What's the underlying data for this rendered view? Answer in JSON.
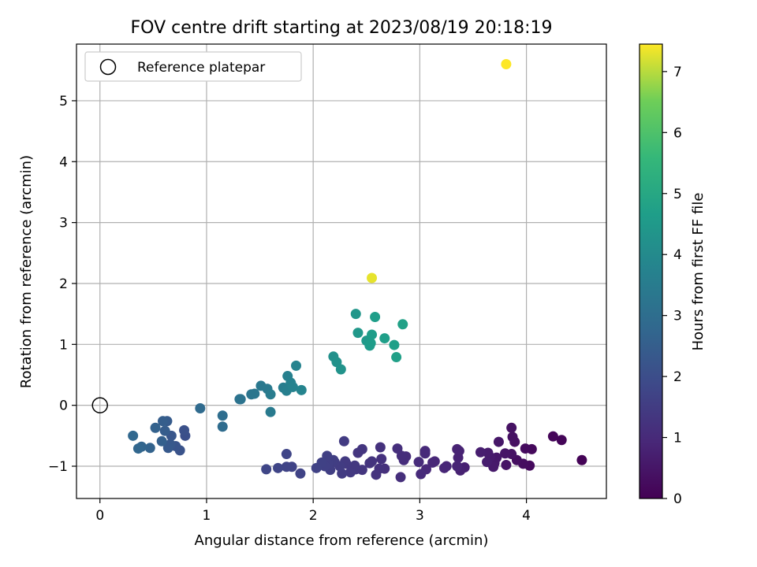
{
  "chart_data": {
    "type": "scatter",
    "title": "FOV centre drift starting at 2023/08/19 20:18:19",
    "xlabel": "Angular distance from reference (arcmin)",
    "ylabel": "Rotation from reference (arcmin)",
    "xlim": [
      -0.22,
      4.75
    ],
    "ylim": [
      -1.53,
      5.93
    ],
    "xticks": [
      0,
      1,
      2,
      3,
      4
    ],
    "yticks": [
      -1,
      0,
      1,
      2,
      3,
      4,
      5
    ],
    "grid": true,
    "legend": {
      "position": "upper-left",
      "entries": [
        {
          "label": "Reference platepar",
          "marker": "open-circle"
        }
      ]
    },
    "reference_point": {
      "x": 0,
      "y": 0
    },
    "colorbar": {
      "label": "Hours from first FF file",
      "range": [
        0,
        7.45
      ],
      "ticks": [
        0,
        1,
        2,
        3,
        4,
        5,
        6,
        7
      ],
      "colormap": "viridis"
    },
    "points": [
      {
        "x": 4.52,
        "y": -0.9,
        "c": 0.05
      },
      {
        "x": 4.33,
        "y": -0.57,
        "c": 0.1
      },
      {
        "x": 4.25,
        "y": -0.51,
        "c": 0.12
      },
      {
        "x": 4.05,
        "y": -0.72,
        "c": 0.18
      },
      {
        "x": 4.03,
        "y": -0.99,
        "c": 0.22
      },
      {
        "x": 3.99,
        "y": -0.71,
        "c": 0.25
      },
      {
        "x": 3.97,
        "y": -0.96,
        "c": 0.28
      },
      {
        "x": 3.91,
        "y": -0.9,
        "c": 0.32
      },
      {
        "x": 3.89,
        "y": -0.6,
        "c": 0.35
      },
      {
        "x": 3.87,
        "y": -0.52,
        "c": 0.38
      },
      {
        "x": 3.86,
        "y": -0.37,
        "c": 0.4
      },
      {
        "x": 3.86,
        "y": -0.8,
        "c": 0.42
      },
      {
        "x": 3.81,
        "y": -0.98,
        "c": 0.45
      },
      {
        "x": 3.8,
        "y": -0.79,
        "c": 0.48
      },
      {
        "x": 3.74,
        "y": -0.6,
        "c": 0.52
      },
      {
        "x": 3.72,
        "y": -0.86,
        "c": 0.55
      },
      {
        "x": 3.7,
        "y": -0.95,
        "c": 0.58
      },
      {
        "x": 3.69,
        "y": -1.01,
        "c": 0.6
      },
      {
        "x": 3.66,
        "y": -0.85,
        "c": 0.62
      },
      {
        "x": 3.64,
        "y": -0.78,
        "c": 0.65
      },
      {
        "x": 3.63,
        "y": -0.93,
        "c": 0.68
      },
      {
        "x": 3.57,
        "y": -0.77,
        "c": 0.7
      },
      {
        "x": 3.42,
        "y": -1.02,
        "c": 0.75
      },
      {
        "x": 3.38,
        "y": -1.07,
        "c": 0.78
      },
      {
        "x": 3.37,
        "y": -0.75,
        "c": 0.8
      },
      {
        "x": 3.36,
        "y": -0.86,
        "c": 0.82
      },
      {
        "x": 3.35,
        "y": -0.72,
        "c": 0.84
      },
      {
        "x": 3.35,
        "y": -1.0,
        "c": 0.86
      },
      {
        "x": 3.25,
        "y": -1.0,
        "c": 0.88
      },
      {
        "x": 3.23,
        "y": -1.03,
        "c": 0.9
      },
      {
        "x": 3.14,
        "y": -0.92,
        "c": 0.92
      },
      {
        "x": 3.12,
        "y": -0.94,
        "c": 0.94
      },
      {
        "x": 3.06,
        "y": -1.05,
        "c": 0.96
      },
      {
        "x": 3.05,
        "y": -0.75,
        "c": 0.98
      },
      {
        "x": 3.05,
        "y": -0.79,
        "c": 1.0
      },
      {
        "x": 3.01,
        "y": -1.13,
        "c": 1.02
      },
      {
        "x": 2.99,
        "y": -0.93,
        "c": 1.04
      },
      {
        "x": 2.87,
        "y": -0.84,
        "c": 1.06
      },
      {
        "x": 2.85,
        "y": -0.9,
        "c": 1.08
      },
      {
        "x": 2.83,
        "y": -0.83,
        "c": 1.1
      },
      {
        "x": 2.82,
        "y": -1.18,
        "c": 1.12
      },
      {
        "x": 2.79,
        "y": -0.71,
        "c": 1.14
      },
      {
        "x": 2.67,
        "y": -1.04,
        "c": 1.16
      },
      {
        "x": 2.64,
        "y": -0.88,
        "c": 1.18
      },
      {
        "x": 2.63,
        "y": -0.69,
        "c": 1.2
      },
      {
        "x": 2.62,
        "y": -1.04,
        "c": 1.22
      },
      {
        "x": 2.59,
        "y": -1.14,
        "c": 1.24
      },
      {
        "x": 2.55,
        "y": -0.92,
        "c": 1.26
      },
      {
        "x": 2.53,
        "y": -0.95,
        "c": 1.28
      },
      {
        "x": 2.46,
        "y": -0.72,
        "c": 1.3
      },
      {
        "x": 2.46,
        "y": -1.06,
        "c": 1.32
      },
      {
        "x": 2.42,
        "y": -0.78,
        "c": 1.34
      },
      {
        "x": 2.4,
        "y": -1.05,
        "c": 1.36
      },
      {
        "x": 2.39,
        "y": -0.99,
        "c": 1.38
      },
      {
        "x": 2.35,
        "y": -1.1,
        "c": 1.4
      },
      {
        "x": 2.31,
        "y": -0.96,
        "c": 1.42
      },
      {
        "x": 2.3,
        "y": -0.92,
        "c": 1.44
      },
      {
        "x": 2.29,
        "y": -0.59,
        "c": 1.46
      },
      {
        "x": 2.27,
        "y": -1.12,
        "c": 1.48
      },
      {
        "x": 2.25,
        "y": -1.0,
        "c": 1.5
      },
      {
        "x": 2.2,
        "y": -0.93,
        "c": 1.52
      },
      {
        "x": 2.19,
        "y": -0.9,
        "c": 1.54
      },
      {
        "x": 2.16,
        "y": -1.06,
        "c": 1.56
      },
      {
        "x": 2.14,
        "y": -0.96,
        "c": 1.58
      },
      {
        "x": 2.13,
        "y": -0.83,
        "c": 1.6
      },
      {
        "x": 2.11,
        "y": -1.0,
        "c": 1.62
      },
      {
        "x": 2.08,
        "y": -0.94,
        "c": 1.64
      },
      {
        "x": 2.03,
        "y": -1.03,
        "c": 1.66
      },
      {
        "x": 1.88,
        "y": -1.12,
        "c": 1.68
      },
      {
        "x": 1.8,
        "y": -1.01,
        "c": 1.7
      },
      {
        "x": 1.75,
        "y": -1.01,
        "c": 1.72
      },
      {
        "x": 1.75,
        "y": -0.8,
        "c": 1.74
      },
      {
        "x": 1.67,
        "y": -1.03,
        "c": 1.76
      },
      {
        "x": 1.56,
        "y": -1.05,
        "c": 1.78
      },
      {
        "x": 0.8,
        "y": -0.5,
        "c": 2.05
      },
      {
        "x": 0.79,
        "y": -0.41,
        "c": 2.1
      },
      {
        "x": 0.75,
        "y": -0.74,
        "c": 2.15
      },
      {
        "x": 0.71,
        "y": -0.67,
        "c": 2.2
      },
      {
        "x": 0.67,
        "y": -0.5,
        "c": 2.25
      },
      {
        "x": 0.66,
        "y": -0.64,
        "c": 2.3
      },
      {
        "x": 0.64,
        "y": -0.7,
        "c": 2.35
      },
      {
        "x": 0.63,
        "y": -0.26,
        "c": 2.4
      },
      {
        "x": 0.61,
        "y": -0.42,
        "c": 2.45
      },
      {
        "x": 0.59,
        "y": -0.26,
        "c": 2.5
      },
      {
        "x": 0.58,
        "y": -0.59,
        "c": 2.55
      },
      {
        "x": 0.52,
        "y": -0.37,
        "c": 2.6
      },
      {
        "x": 0.47,
        "y": -0.7,
        "c": 2.65
      },
      {
        "x": 0.39,
        "y": -0.68,
        "c": 2.7
      },
      {
        "x": 0.36,
        "y": -0.71,
        "c": 2.75
      },
      {
        "x": 0.31,
        "y": -0.5,
        "c": 2.8
      },
      {
        "x": 0.94,
        "y": -0.05,
        "c": 2.9
      },
      {
        "x": 1.15,
        "y": -0.35,
        "c": 2.95
      },
      {
        "x": 1.15,
        "y": -0.17,
        "c": 3.0
      },
      {
        "x": 1.31,
        "y": 0.1,
        "c": 3.15
      },
      {
        "x": 1.32,
        "y": 0.1,
        "c": 3.2
      },
      {
        "x": 1.42,
        "y": 0.18,
        "c": 3.25
      },
      {
        "x": 1.45,
        "y": 0.19,
        "c": 3.3
      },
      {
        "x": 1.51,
        "y": 0.32,
        "c": 3.35
      },
      {
        "x": 1.57,
        "y": 0.27,
        "c": 3.4
      },
      {
        "x": 1.6,
        "y": -0.11,
        "c": 3.45
      },
      {
        "x": 1.6,
        "y": 0.18,
        "c": 3.5
      },
      {
        "x": 1.72,
        "y": 0.29,
        "c": 3.55
      },
      {
        "x": 1.75,
        "y": 0.24,
        "c": 3.6
      },
      {
        "x": 1.76,
        "y": 0.48,
        "c": 3.65
      },
      {
        "x": 1.79,
        "y": 0.37,
        "c": 3.7
      },
      {
        "x": 1.81,
        "y": 0.3,
        "c": 3.72
      },
      {
        "x": 1.84,
        "y": 0.65,
        "c": 3.75
      },
      {
        "x": 1.89,
        "y": 0.25,
        "c": 3.8
      },
      {
        "x": 2.19,
        "y": 0.8,
        "c": 4.2
      },
      {
        "x": 2.22,
        "y": 0.71,
        "c": 4.25
      },
      {
        "x": 2.26,
        "y": 0.59,
        "c": 4.3
      },
      {
        "x": 2.4,
        "y": 1.5,
        "c": 4.4
      },
      {
        "x": 2.42,
        "y": 1.19,
        "c": 4.45
      },
      {
        "x": 2.5,
        "y": 1.06,
        "c": 4.5
      },
      {
        "x": 2.53,
        "y": 0.98,
        "c": 4.55
      },
      {
        "x": 2.54,
        "y": 1.02,
        "c": 4.6
      },
      {
        "x": 2.55,
        "y": 1.16,
        "c": 4.62
      },
      {
        "x": 2.58,
        "y": 1.45,
        "c": 4.65
      },
      {
        "x": 2.67,
        "y": 1.1,
        "c": 4.68
      },
      {
        "x": 2.76,
        "y": 0.99,
        "c": 4.7
      },
      {
        "x": 2.78,
        "y": 0.79,
        "c": 4.72
      },
      {
        "x": 2.84,
        "y": 1.33,
        "c": 4.75
      },
      {
        "x": 2.55,
        "y": 2.09,
        "c": 7.3
      },
      {
        "x": 3.81,
        "y": 5.6,
        "c": 7.45
      }
    ]
  }
}
